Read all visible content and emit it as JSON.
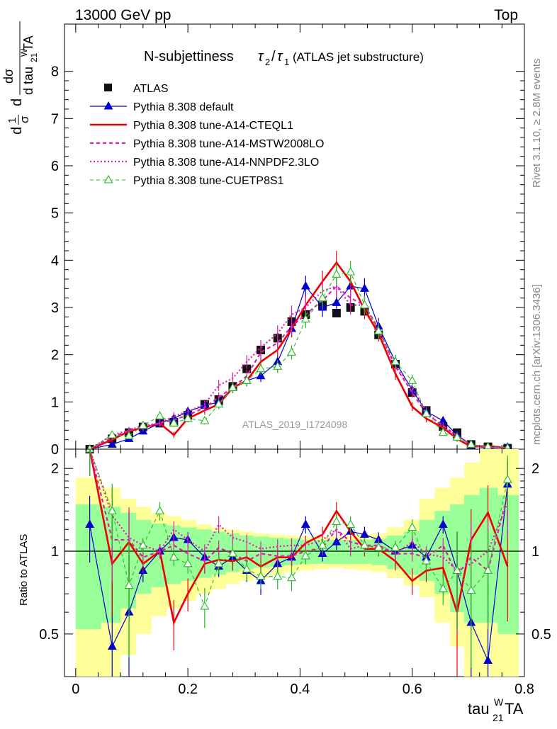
{
  "header": {
    "left": "13000 GeV pp",
    "right": "Top"
  },
  "side_labels": {
    "rivet": "Rivet 3.1.10, ≥ 2.8M events",
    "mcplots": "mcplots.cern.ch [arXiv:1306.3436]"
  },
  "watermark": "ATLAS_2019_I1724098",
  "chart_data": [
    {
      "type": "line",
      "panel": "main",
      "title": "N-subjettiness τ₂/τ₁ (ATLAS jet substructure)",
      "title_main": "N-subjettiness",
      "title_extra": "(ATLAS jet substructure)",
      "ylabel": "1/σ dσ/d tau21WTA",
      "xlim": [
        -0.02,
        0.8
      ],
      "ylim": [
        0,
        9.0
      ],
      "yticks": [
        0,
        1,
        2,
        3,
        4,
        5,
        6,
        7,
        8
      ],
      "legend_position": "top-left",
      "x": [
        0.025,
        0.065,
        0.095,
        0.12,
        0.15,
        0.175,
        0.2,
        0.23,
        0.255,
        0.28,
        0.305,
        0.33,
        0.36,
        0.385,
        0.41,
        0.44,
        0.465,
        0.49,
        0.515,
        0.54,
        0.57,
        0.6,
        0.625,
        0.655,
        0.68,
        0.705,
        0.735,
        0.77
      ],
      "series": [
        {
          "name": "ATLAS",
          "color": "#000000",
          "style": "data",
          "values": [
            0.0,
            0.22,
            0.35,
            0.47,
            0.55,
            0.57,
            0.72,
            0.95,
            1.05,
            1.33,
            1.7,
            2.1,
            2.35,
            2.7,
            2.85,
            3.05,
            2.88,
            3.0,
            2.92,
            2.42,
            1.8,
            1.2,
            0.82,
            0.48,
            0.35,
            0.1,
            0.05,
            0.02
          ]
        },
        {
          "name": "Pythia 8.308 default",
          "color": "#0000cc",
          "style": "solid-thin-triangle",
          "values": [
            0.0,
            0.1,
            0.22,
            0.38,
            0.55,
            0.65,
            0.8,
            0.92,
            1.0,
            1.3,
            1.45,
            1.55,
            1.85,
            2.55,
            3.45,
            3.0,
            3.1,
            3.45,
            3.4,
            2.6,
            1.85,
            1.25,
            0.8,
            0.6,
            0.3,
            0.08,
            0.02,
            0.04
          ]
        },
        {
          "name": "Pythia 8.308 tune-A14-CTEQL1",
          "color": "#ee0000",
          "style": "solid-thick",
          "values": [
            0.0,
            0.2,
            0.38,
            0.45,
            0.55,
            0.3,
            0.65,
            0.82,
            0.95,
            1.3,
            1.45,
            1.85,
            2.1,
            2.55,
            3.05,
            3.55,
            3.95,
            3.55,
            2.95,
            2.45,
            1.6,
            0.9,
            0.65,
            0.45,
            0.22,
            0.05,
            0.07,
            0.02
          ]
        },
        {
          "name": "Pythia 8.308 tune-A14-MSTW2008LO",
          "color": "#dd22aa",
          "style": "dashed",
          "values": [
            0.0,
            0.25,
            0.4,
            0.45,
            0.55,
            0.62,
            0.72,
            0.88,
            1.1,
            1.3,
            1.55,
            2.05,
            2.25,
            2.6,
            2.85,
            3.15,
            3.45,
            3.2,
            3.05,
            2.55,
            1.75,
            1.2,
            0.75,
            0.5,
            0.28,
            0.09,
            0.04,
            0.03
          ]
        },
        {
          "name": "Pythia 8.308 tune-A14-NNPDF2.3LO",
          "color": "#dd22aa",
          "style": "dotted",
          "values": [
            0.0,
            0.3,
            0.4,
            0.5,
            0.55,
            0.7,
            0.8,
            0.95,
            1.35,
            1.5,
            1.85,
            2.15,
            2.45,
            2.85,
            3.0,
            3.35,
            3.45,
            3.05,
            3.05,
            2.5,
            1.75,
            1.3,
            0.8,
            0.45,
            0.3,
            0.09,
            0.05,
            0.03
          ]
        },
        {
          "name": "Pythia 8.308 tune-CUETP8S1",
          "color": "#22bb22",
          "style": "dashed-thin-open-triangle",
          "values": [
            0.0,
            0.3,
            0.28,
            0.5,
            0.7,
            0.55,
            0.65,
            0.6,
            0.95,
            1.3,
            1.45,
            1.7,
            1.75,
            2.05,
            2.75,
            3.2,
            3.7,
            3.75,
            3.05,
            2.5,
            1.85,
            1.45,
            0.75,
            0.35,
            0.25,
            0.1,
            0.05,
            0.02
          ]
        }
      ]
    },
    {
      "type": "line",
      "panel": "ratio",
      "ylabel": "Ratio to ATLAS",
      "xlabel": "tau21WTA",
      "xlim": [
        -0.02,
        0.8
      ],
      "ylim": [
        0.35,
        2.35
      ],
      "yticks": [
        0.5,
        1,
        2
      ],
      "xticks": [
        0,
        0.2,
        0.4,
        0.6,
        0.8
      ],
      "x": [
        0.025,
        0.065,
        0.095,
        0.12,
        0.15,
        0.175,
        0.2,
        0.23,
        0.255,
        0.28,
        0.305,
        0.33,
        0.36,
        0.385,
        0.41,
        0.44,
        0.465,
        0.49,
        0.515,
        0.54,
        0.57,
        0.6,
        0.625,
        0.655,
        0.68,
        0.705,
        0.735,
        0.77
      ],
      "bands": {
        "inner_1sigma": [
          [
            0.52,
            1.48
          ],
          [
            0.55,
            1.45
          ],
          [
            0.62,
            1.38
          ],
          [
            0.7,
            1.3
          ],
          [
            0.74,
            1.26
          ],
          [
            0.76,
            1.24
          ],
          [
            0.78,
            1.22
          ],
          [
            0.8,
            1.2
          ],
          [
            0.82,
            1.18
          ],
          [
            0.84,
            1.16
          ],
          [
            0.86,
            1.14
          ],
          [
            0.87,
            1.13
          ],
          [
            0.88,
            1.12
          ],
          [
            0.89,
            1.11
          ],
          [
            0.9,
            1.1
          ],
          [
            0.9,
            1.1
          ],
          [
            0.9,
            1.1
          ],
          [
            0.9,
            1.1
          ],
          [
            0.9,
            1.1
          ],
          [
            0.89,
            1.11
          ],
          [
            0.86,
            1.14
          ],
          [
            0.82,
            1.18
          ],
          [
            0.78,
            1.3
          ],
          [
            0.7,
            1.4
          ],
          [
            0.6,
            1.48
          ],
          [
            0.55,
            1.6
          ],
          [
            0.55,
            1.7
          ],
          [
            0.5,
            1.6
          ]
        ],
        "outer_2sigma": [
          [
            0.3,
            1.85
          ],
          [
            0.35,
            1.7
          ],
          [
            0.42,
            1.55
          ],
          [
            0.5,
            1.45
          ],
          [
            0.58,
            1.38
          ],
          [
            0.62,
            1.34
          ],
          [
            0.66,
            1.3
          ],
          [
            0.7,
            1.25
          ],
          [
            0.73,
            1.22
          ],
          [
            0.76,
            1.2
          ],
          [
            0.78,
            1.18
          ],
          [
            0.8,
            1.16
          ],
          [
            0.82,
            1.15
          ],
          [
            0.84,
            1.14
          ],
          [
            0.85,
            1.13
          ],
          [
            0.86,
            1.13
          ],
          [
            0.87,
            1.13
          ],
          [
            0.86,
            1.14
          ],
          [
            0.85,
            1.15
          ],
          [
            0.84,
            1.16
          ],
          [
            0.8,
            1.22
          ],
          [
            0.75,
            1.3
          ],
          [
            0.68,
            1.55
          ],
          [
            0.55,
            1.7
          ],
          [
            0.45,
            1.85
          ],
          [
            0.35,
            2.1
          ],
          [
            0.35,
            2.4
          ],
          [
            0.35,
            2.4
          ]
        ]
      },
      "series": [
        {
          "name": "Pythia 8.308 default",
          "color": "#0000cc",
          "style": "solid-thin-triangle",
          "values": [
            1.25,
            0.45,
            0.6,
            0.85,
            1.0,
            1.12,
            1.1,
            0.95,
            0.88,
            0.95,
            0.85,
            0.78,
            0.9,
            0.95,
            1.25,
            0.98,
            1.08,
            1.18,
            1.15,
            1.1,
            1.0,
            1.05,
            0.95,
            1.25,
            0.85,
            0.55,
            0.4,
            1.75
          ]
        },
        {
          "name": "Pythia 8.308 tune-A14-CTEQL1",
          "color": "#ee0000",
          "style": "solid-thick",
          "values": [
            2.35,
            0.9,
            1.08,
            0.9,
            1.0,
            0.55,
            0.7,
            0.9,
            0.93,
            0.92,
            0.95,
            0.88,
            0.95,
            0.95,
            1.07,
            1.15,
            1.4,
            1.18,
            1.02,
            1.02,
            0.92,
            0.78,
            0.85,
            0.87,
            0.6,
            1.1,
            1.38,
            0.88
          ]
        },
        {
          "name": "Pythia 8.308 tune-A14-MSTW2008LO",
          "color": "#dd22aa",
          "style": "dashed",
          "values": [
            2.35,
            1.1,
            1.1,
            0.95,
            1.0,
            1.05,
            0.98,
            0.92,
            1.03,
            0.98,
            0.92,
            0.98,
            0.96,
            0.96,
            1.0,
            1.03,
            1.2,
            1.08,
            1.05,
            1.05,
            0.98,
            0.98,
            0.95,
            1.05,
            0.82,
            0.95,
            0.85,
            1.6
          ]
        },
        {
          "name": "Pythia 8.308 tune-A14-NNPDF2.3LO",
          "color": "#dd22aa",
          "style": "dotted",
          "values": [
            2.35,
            1.35,
            1.12,
            1.05,
            1.0,
            1.2,
            1.1,
            1.0,
            1.25,
            1.12,
            1.08,
            1.02,
            1.04,
            1.05,
            1.05,
            1.1,
            1.2,
            1.02,
            1.05,
            1.03,
            0.98,
            1.08,
            0.98,
            0.95,
            0.85,
            0.9,
            1.0,
            1.5
          ]
        },
        {
          "name": "Pythia 8.308 tune-CUETP8S1",
          "color": "#22bb22",
          "style": "dashed-thin-open-triangle",
          "values": [
            2.35,
            1.4,
            0.75,
            1.05,
            1.4,
            0.95,
            0.9,
            0.63,
            0.9,
            0.98,
            0.86,
            0.81,
            0.81,
            0.8,
            0.96,
            1.05,
            1.28,
            1.25,
            1.05,
            1.03,
            1.03,
            1.22,
            0.92,
            0.73,
            0.85,
            0.72,
            0.85,
            1.82
          ]
        }
      ]
    }
  ]
}
